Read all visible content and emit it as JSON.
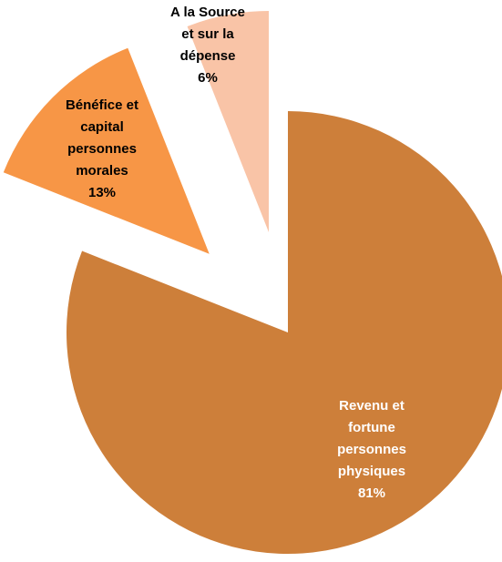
{
  "chart_data": {
    "type": "pie",
    "categories": [
      "Revenu et\nfortune\npersonnes\nphysiques",
      "Bénéfice et\ncapital\npersonnes\nmorales",
      "A la Source\net sur la\ndépense"
    ],
    "values": [
      81,
      13,
      6
    ],
    "value_labels": [
      "81%",
      "13%",
      "6%"
    ],
    "colors": [
      "#cd7f3a",
      "#f79646",
      "#f9c4a7"
    ]
  }
}
